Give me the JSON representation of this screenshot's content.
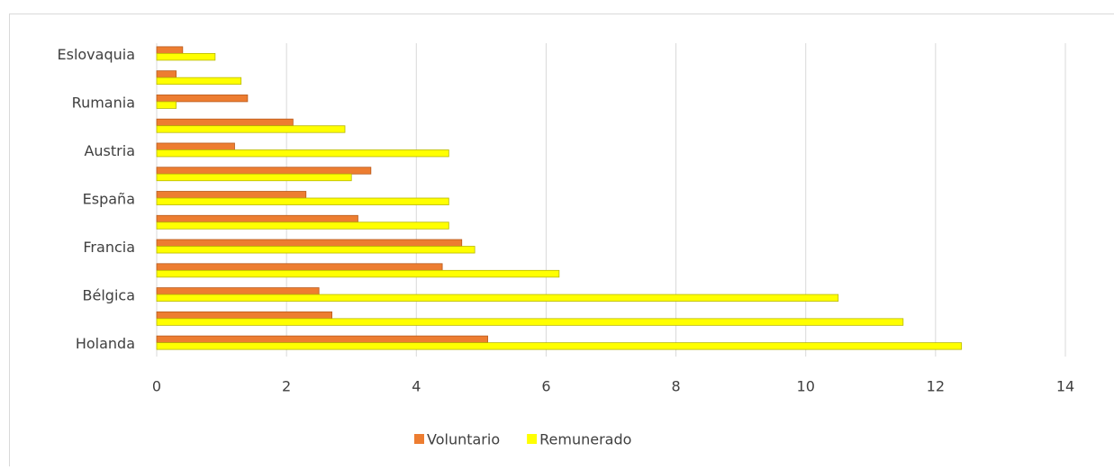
{
  "chart_data": {
    "type": "bar",
    "orientation": "horizontal",
    "categories": [
      "Holanda",
      null,
      "Bélgica",
      null,
      "Francia",
      null,
      "España",
      null,
      "Austria",
      null,
      "Rumania",
      null,
      "Eslovaquia"
    ],
    "series": [
      {
        "name": "Voluntario",
        "color": "#ed7d31",
        "values": [
          5.1,
          2.7,
          2.5,
          4.4,
          4.7,
          3.1,
          2.3,
          3.3,
          1.2,
          2.1,
          1.4,
          0.3,
          0.4
        ]
      },
      {
        "name": "Remunerado",
        "color": "#ffff00",
        "values": [
          12.4,
          11.5,
          10.5,
          6.2,
          4.9,
          4.5,
          4.5,
          3.0,
          4.5,
          2.9,
          0.3,
          1.3,
          0.9
        ]
      }
    ],
    "xlim": [
      0,
      14
    ],
    "xticks": [
      0,
      2,
      4,
      6,
      8,
      10,
      12,
      14
    ],
    "grid": true,
    "legend": "bottom"
  }
}
